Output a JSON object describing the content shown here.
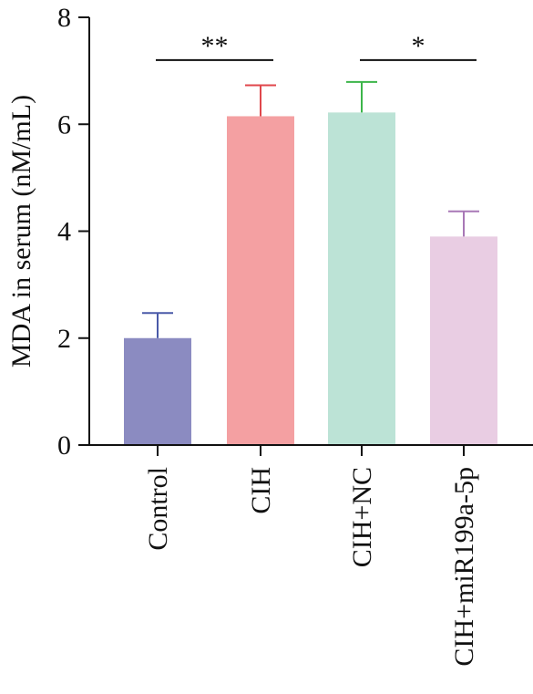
{
  "chart_data": {
    "type": "bar",
    "title": "",
    "xlabel": "",
    "ylabel": "MDA in serum (nM/mL)",
    "ylim": [
      0,
      8
    ],
    "yticks": [
      "0",
      "2",
      "4",
      "6",
      "8"
    ],
    "categories": [
      "Control",
      "CIH",
      "CIH+NC",
      "CIH+miR199a-5p"
    ],
    "values": [
      2.0,
      6.15,
      6.22,
      3.9
    ],
    "errors": [
      0.47,
      0.58,
      0.57,
      0.47
    ],
    "colors": [
      "#8b8bc1",
      "#f4a0a2",
      "#bce3d6",
      "#e9cde3"
    ],
    "error_colors": [
      "#4a5aa8",
      "#e0474c",
      "#3cb54a",
      "#a878b6"
    ],
    "grid": false,
    "significance": [
      {
        "from": 0,
        "to": 1,
        "label": "**",
        "level": 7.2
      },
      {
        "from": 2,
        "to": 3,
        "label": "*",
        "level": 7.2
      }
    ]
  }
}
